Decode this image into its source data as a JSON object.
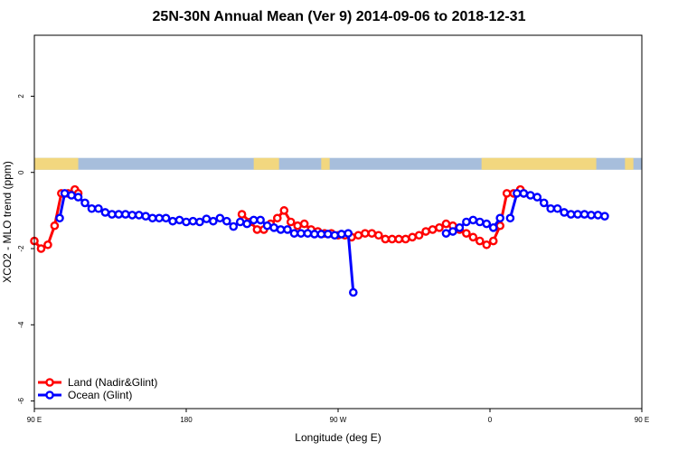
{
  "chart_data": {
    "type": "line",
    "title": "25N-30N Annual Mean (Ver 9)   2014-09-06 to 2018-12-31",
    "xlabel": "Longitude (deg E)",
    "ylabel": "XCO2 - MLO trend (ppm)",
    "xlim": [
      90,
      450
    ],
    "ylim": [
      -6.2,
      3.6
    ],
    "x_ticks": [
      {
        "value": 90,
        "label": "90 E"
      },
      {
        "value": 180,
        "label": "180"
      },
      {
        "value": 270,
        "label": "90 W"
      },
      {
        "value": 360,
        "label": "0"
      },
      {
        "value": 450,
        "label": "90 E"
      },
      {
        "value": 540,
        "label": "180"
      }
    ],
    "y_ticks": [
      {
        "value": 2,
        "label": "2"
      },
      {
        "value": 0,
        "label": "0"
      },
      {
        "value": -2,
        "label": "-2"
      },
      {
        "value": -4,
        "label": "-4"
      },
      {
        "value": -6,
        "label": "-6"
      }
    ],
    "legend_position": "bottom-left",
    "surface_strip": {
      "ymin": 0.07,
      "ymax": 0.38,
      "land_color": "#F2D77F",
      "ocean_color": "#A7BEDC",
      "land_segments": [
        [
          90,
          116
        ],
        [
          220,
          235
        ],
        [
          260,
          265
        ],
        [
          355,
          423
        ],
        [
          440,
          445
        ]
      ]
    },
    "series": [
      {
        "name": "Land (Nadir&Glint)",
        "color": "#FF0000",
        "segments": [
          [
            [
              90,
              -1.8
            ],
            [
              94,
              -2.0
            ],
            [
              98,
              -1.9
            ],
            [
              102,
              -1.4
            ],
            [
              106,
              -0.55
            ],
            [
              110,
              -0.55
            ],
            [
              114,
              -0.45
            ],
            [
              116,
              -0.55
            ]
          ],
          [
            [
              213,
              -1.1
            ],
            [
              218,
              -1.3
            ],
            [
              222,
              -1.5
            ],
            [
              226,
              -1.5
            ],
            [
              230,
              -1.35
            ],
            [
              234,
              -1.2
            ],
            [
              238,
              -1.0
            ],
            [
              242,
              -1.3
            ],
            [
              246,
              -1.4
            ],
            [
              250,
              -1.35
            ],
            [
              254,
              -1.5
            ],
            [
              258,
              -1.55
            ],
            [
              262,
              -1.6
            ],
            [
              266,
              -1.6
            ],
            [
              270,
              -1.65
            ],
            [
              274,
              -1.65
            ],
            [
              278,
              -1.7
            ],
            [
              282,
              -1.65
            ],
            [
              286,
              -1.6
            ],
            [
              290,
              -1.6
            ],
            [
              294,
              -1.65
            ],
            [
              298,
              -1.75
            ],
            [
              302,
              -1.75
            ],
            [
              306,
              -1.75
            ],
            [
              310,
              -1.75
            ],
            [
              314,
              -1.7
            ],
            [
              318,
              -1.65
            ],
            [
              322,
              -1.55
            ],
            [
              326,
              -1.5
            ],
            [
              330,
              -1.45
            ],
            [
              334,
              -1.35
            ],
            [
              338,
              -1.4
            ],
            [
              342,
              -1.5
            ],
            [
              346,
              -1.6
            ],
            [
              350,
              -1.7
            ],
            [
              354,
              -1.8
            ],
            [
              358,
              -1.9
            ],
            [
              362,
              -1.8
            ],
            [
              366,
              -1.4
            ],
            [
              370,
              -0.55
            ],
            [
              374,
              -0.55
            ],
            [
              378,
              -0.45
            ],
            [
              380,
              -0.55
            ]
          ]
        ]
      },
      {
        "name": "Ocean (Glint)",
        "color": "#0000FF",
        "segments": [
          [
            [
              105,
              -1.2
            ],
            [
              108,
              -0.55
            ],
            [
              112,
              -0.6
            ],
            [
              116,
              -0.65
            ],
            [
              120,
              -0.8
            ],
            [
              124,
              -0.95
            ],
            [
              128,
              -0.95
            ],
            [
              132,
              -1.05
            ],
            [
              136,
              -1.1
            ],
            [
              140,
              -1.1
            ],
            [
              144,
              -1.1
            ],
            [
              148,
              -1.12
            ],
            [
              152,
              -1.12
            ],
            [
              156,
              -1.15
            ],
            [
              160,
              -1.2
            ],
            [
              164,
              -1.2
            ],
            [
              168,
              -1.2
            ],
            [
              172,
              -1.28
            ],
            [
              176,
              -1.25
            ],
            [
              180,
              -1.3
            ],
            [
              184,
              -1.28
            ],
            [
              188,
              -1.3
            ],
            [
              192,
              -1.22
            ],
            [
              196,
              -1.28
            ],
            [
              200,
              -1.2
            ],
            [
              204,
              -1.28
            ],
            [
              208,
              -1.42
            ],
            [
              212,
              -1.3
            ],
            [
              216,
              -1.35
            ],
            [
              220,
              -1.25
            ],
            [
              224,
              -1.25
            ],
            [
              228,
              -1.4
            ],
            [
              232,
              -1.45
            ],
            [
              236,
              -1.5
            ],
            [
              240,
              -1.5
            ],
            [
              244,
              -1.6
            ],
            [
              248,
              -1.6
            ],
            [
              252,
              -1.6
            ],
            [
              256,
              -1.62
            ],
            [
              260,
              -1.62
            ],
            [
              264,
              -1.62
            ],
            [
              268,
              -1.65
            ],
            [
              272,
              -1.62
            ],
            [
              276,
              -1.6
            ],
            [
              279,
              -3.15
            ]
          ],
          [
            [
              334,
              -1.6
            ],
            [
              338,
              -1.55
            ],
            [
              342,
              -1.45
            ],
            [
              346,
              -1.3
            ],
            [
              350,
              -1.25
            ],
            [
              354,
              -1.3
            ],
            [
              358,
              -1.35
            ],
            [
              362,
              -1.45
            ],
            [
              366,
              -1.2
            ]
          ],
          [
            [
              372,
              -1.2
            ],
            [
              376,
              -0.55
            ],
            [
              380,
              -0.55
            ],
            [
              384,
              -0.6
            ],
            [
              388,
              -0.65
            ],
            [
              392,
              -0.8
            ],
            [
              396,
              -0.95
            ],
            [
              400,
              -0.95
            ],
            [
              404,
              -1.05
            ],
            [
              408,
              -1.1
            ],
            [
              412,
              -1.1
            ],
            [
              416,
              -1.1
            ],
            [
              420,
              -1.12
            ],
            [
              424,
              -1.12
            ],
            [
              428,
              -1.15
            ]
          ]
        ]
      }
    ]
  }
}
